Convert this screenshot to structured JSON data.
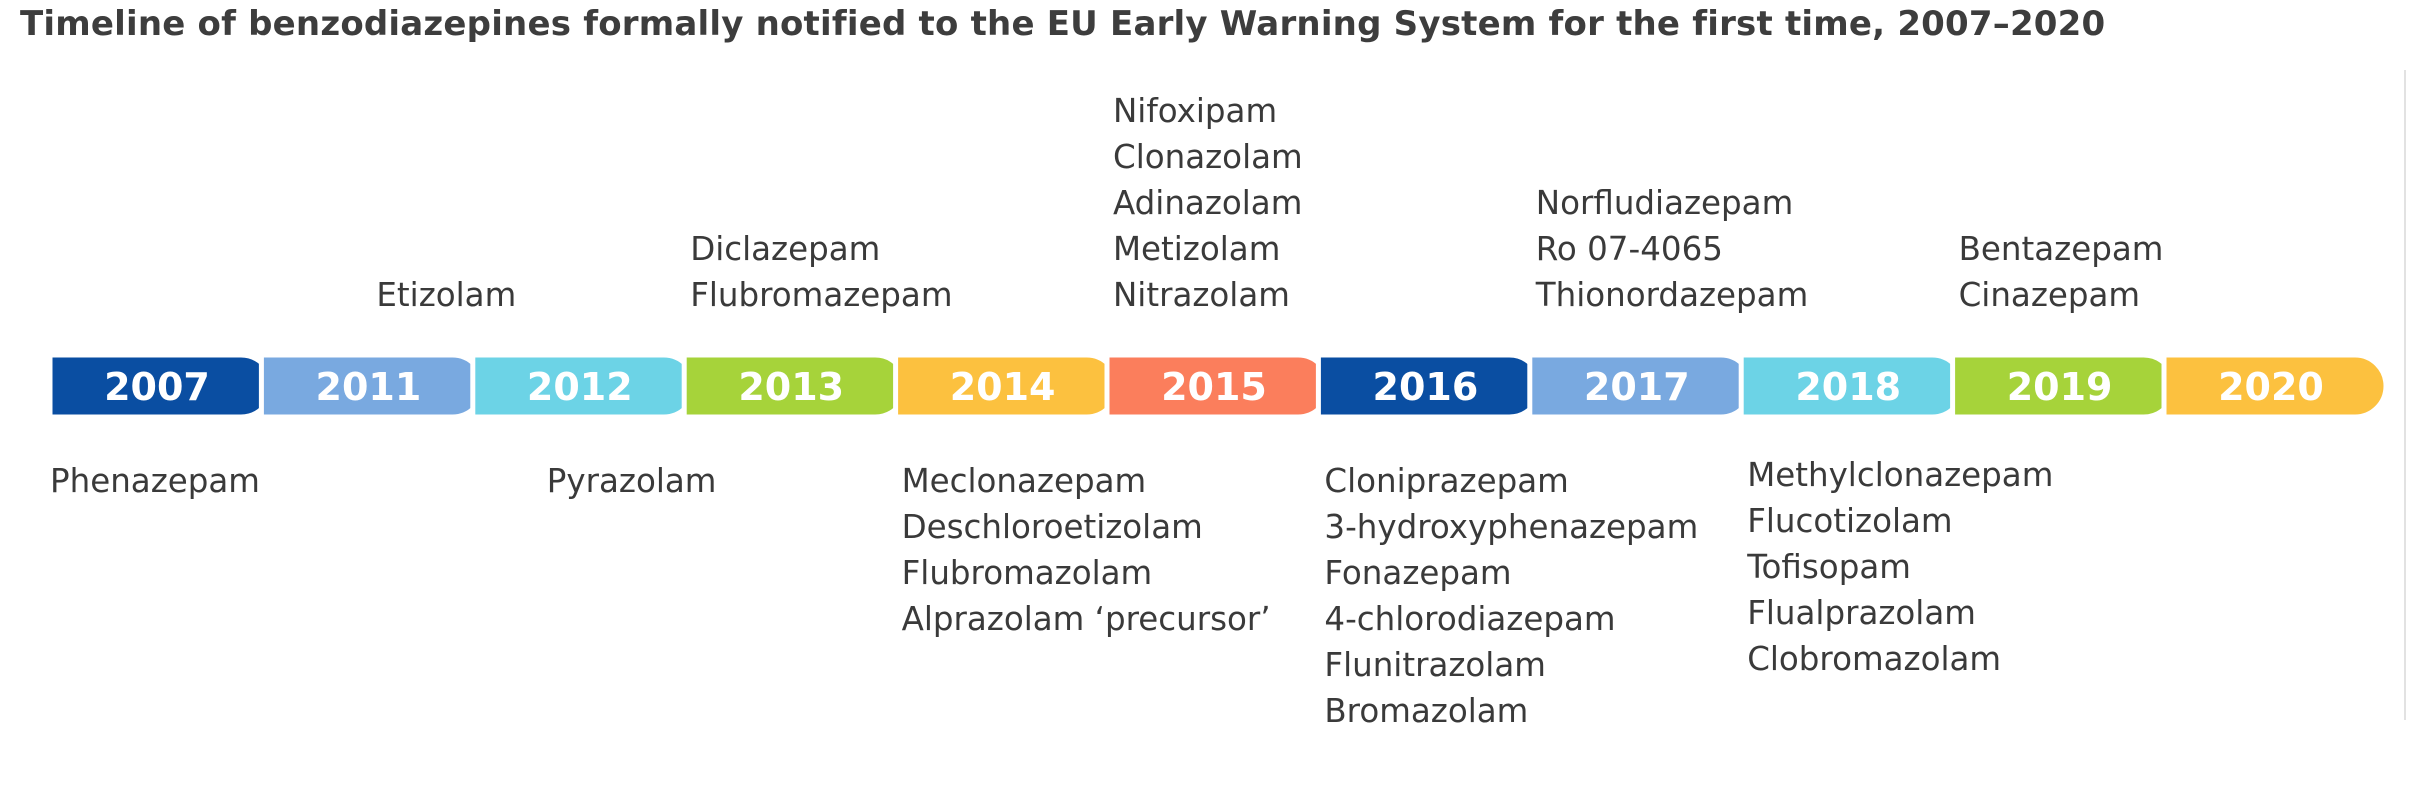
{
  "title": "Timeline of benzodiazepines formally notified to the EU Early Warning System for the first time, 2007–2020",
  "segments": [
    {
      "year": "2007",
      "color": "#0a4ea2",
      "above": [],
      "below": [
        "Phenazepam"
      ]
    },
    {
      "year": "2011",
      "color": "#79a9e0",
      "above": [
        "Etizolam"
      ],
      "below": []
    },
    {
      "year": "2012",
      "color": "#6cd3e6",
      "above": [],
      "below": [
        "Pyrazolam"
      ]
    },
    {
      "year": "2013",
      "color": "#a6d33a",
      "above": [
        "Diclazepam",
        "Flubromazepam"
      ],
      "below": []
    },
    {
      "year": "2014",
      "color": "#fcc13f",
      "above": [],
      "below": [
        "Meclonazepam",
        "Deschloroetizolam",
        "Flubromazolam",
        "Alprazolam ‘precursor’"
      ]
    },
    {
      "year": "2015",
      "color": "#fb7e5c",
      "above": [
        "Nifoxipam",
        "Clonazolam",
        "Adinazolam",
        "Metizolam",
        "Nitrazolam"
      ],
      "below": []
    },
    {
      "year": "2016",
      "color": "#0a4ea2",
      "above": [],
      "below": [
        "Cloniprazepam",
        "3-hydroxyphenazepam",
        "Fonazepam",
        "4-chlorodiazepam",
        "Flunitrazolam",
        "Bromazolam"
      ]
    },
    {
      "year": "2017",
      "color": "#79a9e0",
      "above": [
        "Norfludiazepam",
        "Ro 07-4065",
        "Thionordazepam"
      ],
      "below": []
    },
    {
      "year": "2018",
      "color": "#6cd3e6",
      "above": [],
      "below": [
        "Methylclonazepam",
        "Flucotizolam",
        "Tofisopam",
        "Flualprazolam",
        "Clobromazolam"
      ]
    },
    {
      "year": "2019",
      "color": "#a6d33a",
      "above": [
        "Bentazepam",
        "Cinazepam"
      ],
      "below": []
    },
    {
      "year": "2020",
      "color": "#fcc13f",
      "above": [],
      "below": []
    }
  ]
}
